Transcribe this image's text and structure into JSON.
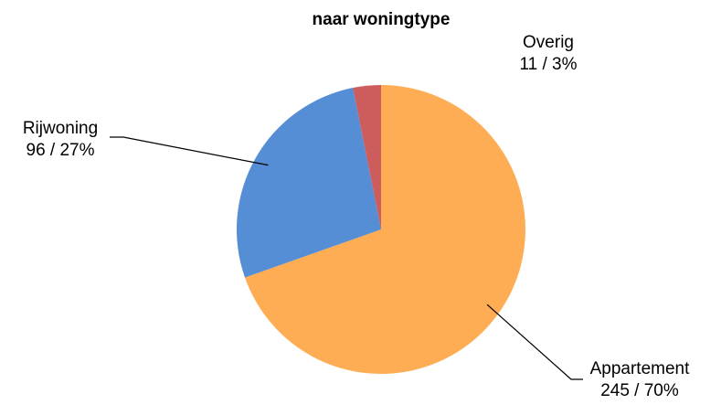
{
  "chart_data": {
    "type": "pie",
    "title": "naar woningtype",
    "categories": [
      "Appartement",
      "Rijwoning",
      "Overig"
    ],
    "values": [
      245,
      96,
      11
    ],
    "value_labels": [
      "245 / 70%",
      "96 / 27%",
      "11 / 3%"
    ],
    "colors": [
      "#ffad54",
      "#558ed5",
      "#cd5c5c"
    ]
  }
}
